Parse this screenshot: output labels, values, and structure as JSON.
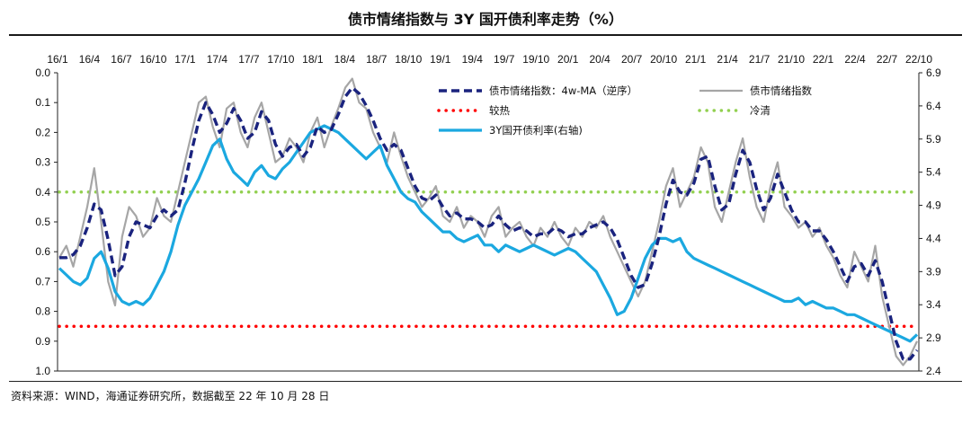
{
  "header": {
    "title": "债市情绪指数与 3Y 国开债利率走势（%）"
  },
  "footer": {
    "source": "资料来源：WIND，海通证券研究所，数据截至 22 年 10 月 28 日"
  },
  "chart_data": {
    "type": "line",
    "title": "债市情绪指数与 3Y 国开债利率走势（%）",
    "x_tick_labels": [
      "16/1",
      "16/4",
      "16/7",
      "16/10",
      "17/1",
      "17/4",
      "17/7",
      "17/10",
      "18/1",
      "18/4",
      "18/7",
      "18/10",
      "19/1",
      "19/4",
      "19/7",
      "19/10",
      "20/1",
      "20/4",
      "20/7",
      "20/10",
      "21/1",
      "21/4",
      "21/7",
      "21/10",
      "22/1",
      "22/4",
      "22/7",
      "22/10"
    ],
    "y_left": {
      "ticks": [
        "0.0",
        "0.1",
        "0.2",
        "0.3",
        "0.4",
        "0.5",
        "0.6",
        "0.7",
        "0.8",
        "0.9",
        "1.0"
      ],
      "range": [
        1.0,
        0.0
      ],
      "inverted": true
    },
    "y_right": {
      "ticks": [
        "6.9",
        "6.4",
        "5.9",
        "5.4",
        "4.9",
        "4.4",
        "3.9",
        "3.4",
        "2.9",
        "2.4"
      ],
      "range": [
        2.4,
        6.9
      ]
    },
    "legend": [
      {
        "name": "债市情绪指数：4w-MA（逆序）",
        "color": "#1a237e",
        "style": "dashed"
      },
      {
        "name": "债市情绪指数",
        "color": "#a6a6a6",
        "style": "solid"
      },
      {
        "name": "较热",
        "color": "#ff0000",
        "style": "dotted"
      },
      {
        "name": "冷清",
        "color": "#92d050",
        "style": "dotted"
      },
      {
        "name": "3Y国开债利率(右轴)",
        "color": "#1ba8e0",
        "style": "solid"
      }
    ],
    "reference_lines": [
      {
        "name": "较热",
        "value": 0.85,
        "axis": "left"
      },
      {
        "name": "冷清",
        "value": 0.4,
        "axis": "left"
      }
    ],
    "series": [
      {
        "name": "债市情绪指数",
        "axis": "left",
        "values": [
          0.62,
          0.58,
          0.65,
          0.55,
          0.45,
          0.32,
          0.5,
          0.7,
          0.78,
          0.55,
          0.45,
          0.48,
          0.55,
          0.52,
          0.42,
          0.48,
          0.5,
          0.4,
          0.3,
          0.2,
          0.1,
          0.08,
          0.18,
          0.25,
          0.12,
          0.1,
          0.2,
          0.25,
          0.15,
          0.1,
          0.2,
          0.3,
          0.28,
          0.22,
          0.25,
          0.3,
          0.2,
          0.15,
          0.25,
          0.18,
          0.12,
          0.05,
          0.02,
          0.1,
          0.12,
          0.2,
          0.25,
          0.3,
          0.2,
          0.28,
          0.35,
          0.4,
          0.45,
          0.42,
          0.38,
          0.48,
          0.5,
          0.45,
          0.52,
          0.48,
          0.5,
          0.55,
          0.48,
          0.45,
          0.55,
          0.52,
          0.5,
          0.55,
          0.58,
          0.52,
          0.55,
          0.5,
          0.55,
          0.58,
          0.52,
          0.55,
          0.5,
          0.52,
          0.48,
          0.55,
          0.6,
          0.65,
          0.7,
          0.75,
          0.7,
          0.6,
          0.5,
          0.38,
          0.32,
          0.45,
          0.4,
          0.35,
          0.25,
          0.3,
          0.45,
          0.5,
          0.4,
          0.3,
          0.22,
          0.35,
          0.45,
          0.5,
          0.38,
          0.3,
          0.45,
          0.48,
          0.52,
          0.5,
          0.55,
          0.52,
          0.58,
          0.62,
          0.68,
          0.72,
          0.6,
          0.65,
          0.7,
          0.58,
          0.75,
          0.85,
          0.95,
          0.98,
          0.95,
          0.9
        ]
      },
      {
        "name": "债市情绪指数：4w-MA（逆序）",
        "axis": "left",
        "values": [
          0.62,
          0.62,
          0.61,
          0.58,
          0.52,
          0.44,
          0.46,
          0.56,
          0.68,
          0.65,
          0.55,
          0.5,
          0.51,
          0.52,
          0.48,
          0.46,
          0.48,
          0.46,
          0.37,
          0.26,
          0.16,
          0.1,
          0.14,
          0.2,
          0.17,
          0.12,
          0.16,
          0.22,
          0.2,
          0.13,
          0.16,
          0.24,
          0.28,
          0.25,
          0.24,
          0.28,
          0.25,
          0.18,
          0.2,
          0.19,
          0.14,
          0.08,
          0.05,
          0.07,
          0.11,
          0.16,
          0.22,
          0.26,
          0.24,
          0.26,
          0.32,
          0.38,
          0.42,
          0.43,
          0.41,
          0.45,
          0.48,
          0.47,
          0.49,
          0.49,
          0.5,
          0.52,
          0.51,
          0.48,
          0.51,
          0.53,
          0.52,
          0.53,
          0.55,
          0.54,
          0.54,
          0.52,
          0.53,
          0.55,
          0.54,
          0.54,
          0.52,
          0.51,
          0.5,
          0.52,
          0.56,
          0.62,
          0.68,
          0.72,
          0.71,
          0.64,
          0.55,
          0.44,
          0.36,
          0.4,
          0.41,
          0.37,
          0.29,
          0.28,
          0.38,
          0.46,
          0.44,
          0.34,
          0.26,
          0.3,
          0.39,
          0.46,
          0.42,
          0.34,
          0.4,
          0.46,
          0.5,
          0.5,
          0.53,
          0.53,
          0.56,
          0.6,
          0.65,
          0.7,
          0.65,
          0.64,
          0.68,
          0.63,
          0.7,
          0.8,
          0.9,
          0.96,
          0.96,
          0.93
        ]
      },
      {
        "name": "3Y国开债利率(右轴)",
        "axis": "right",
        "values": [
          3.95,
          3.85,
          3.75,
          3.7,
          3.8,
          4.1,
          4.2,
          3.95,
          3.6,
          3.45,
          3.4,
          3.45,
          3.4,
          3.5,
          3.7,
          3.9,
          4.2,
          4.6,
          4.9,
          5.1,
          5.3,
          5.55,
          5.8,
          5.9,
          5.6,
          5.4,
          5.3,
          5.2,
          5.4,
          5.5,
          5.35,
          5.3,
          5.45,
          5.55,
          5.7,
          5.85,
          6.0,
          6.05,
          6.1,
          6.05,
          6.0,
          5.9,
          5.8,
          5.7,
          5.6,
          5.7,
          5.8,
          5.5,
          5.3,
          5.1,
          5.0,
          4.95,
          4.8,
          4.7,
          4.6,
          4.5,
          4.5,
          4.4,
          4.35,
          4.4,
          4.45,
          4.3,
          4.3,
          4.2,
          4.3,
          4.25,
          4.2,
          4.25,
          4.3,
          4.25,
          4.2,
          4.15,
          4.2,
          4.25,
          4.2,
          4.1,
          4.0,
          3.9,
          3.7,
          3.5,
          3.25,
          3.3,
          3.5,
          3.8,
          4.1,
          4.3,
          4.4,
          4.4,
          4.35,
          4.4,
          4.2,
          4.1,
          4.05,
          4.0,
          3.95,
          3.9,
          3.85,
          3.8,
          3.75,
          3.7,
          3.65,
          3.6,
          3.55,
          3.5,
          3.45,
          3.45,
          3.5,
          3.4,
          3.45,
          3.4,
          3.35,
          3.35,
          3.3,
          3.25,
          3.25,
          3.2,
          3.15,
          3.1,
          3.05,
          3.0,
          2.95,
          2.9,
          2.85,
          2.95
        ]
      }
    ]
  }
}
